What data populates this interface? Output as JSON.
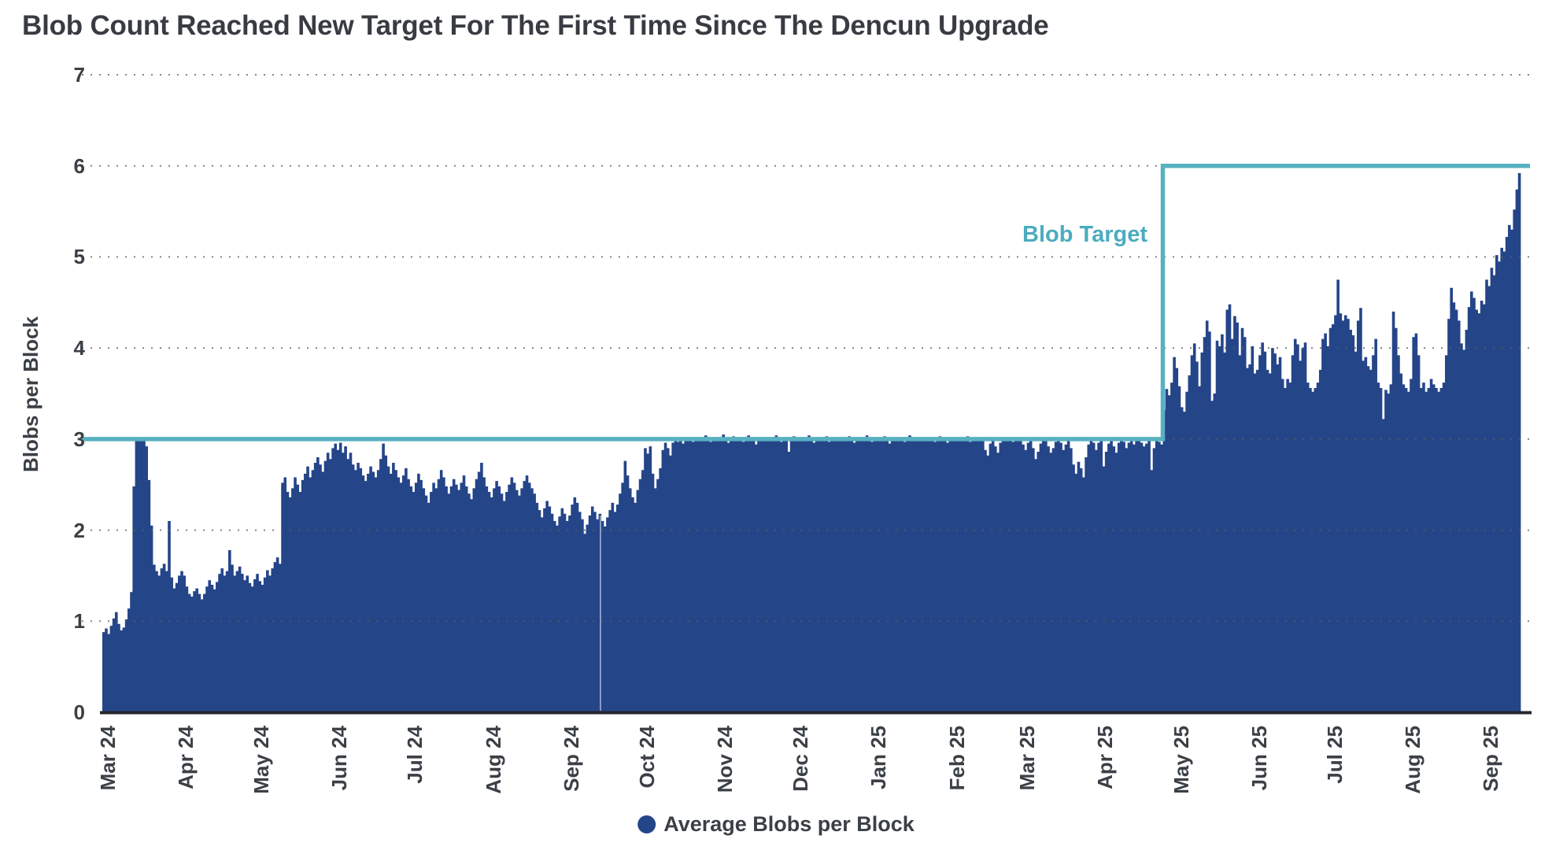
{
  "title": "Blob Count Reached New Target For The First Time Since The Dencun Upgrade",
  "colors": {
    "bar": "#254589",
    "target_line": "#58b1c1",
    "annotation_text": "#4bacbe",
    "text": "#3b4046",
    "axis_line": "#26262e",
    "grid_dot": "#5c5c5c",
    "gap_line": "#ffffff"
  },
  "y_axis": {
    "label": "Blobs per Block",
    "ticks": [
      0,
      1,
      2,
      3,
      4,
      5,
      6,
      7
    ]
  },
  "legend": {
    "label": "Average Blobs per Block",
    "marker": "circle-icon"
  },
  "annotation": {
    "label": "Blob Target"
  },
  "chart_data": {
    "type": "bar",
    "title": "Blob Count Reached New Target For The First Time Since The Dencun Upgrade",
    "xlabel": "",
    "ylabel": "Blobs per Block",
    "ylim": [
      0,
      7
    ],
    "grid": "dotted-horizontal",
    "legend_position": "bottom-center",
    "series_name": "Average Blobs per Block",
    "start_date": "2024-03-13",
    "frequency": "daily",
    "x_ticks": [
      [
        "Mar 24",
        2
      ],
      [
        "Apr 24",
        33
      ],
      [
        "May 24",
        63
      ],
      [
        "Jun 24",
        94
      ],
      [
        "Jul 24",
        124
      ],
      [
        "Aug 24",
        155
      ],
      [
        "Sep 24",
        186
      ],
      [
        "Oct 24",
        216
      ],
      [
        "Nov 24",
        247
      ],
      [
        "Dec 24",
        277
      ],
      [
        "Jan 25",
        308
      ],
      [
        "Feb 25",
        339
      ],
      [
        "Mar 25",
        367
      ],
      [
        "Apr 25",
        398
      ],
      [
        "May 25",
        428
      ],
      [
        "Jun 25",
        459
      ],
      [
        "Jul 25",
        489
      ],
      [
        "Aug 25",
        520
      ],
      [
        "Sep 25",
        551
      ]
    ],
    "target_series": {
      "name": "Blob Target",
      "before_value": 3,
      "after_value": 6,
      "change_index": 421,
      "change_date": "2025-05-08"
    },
    "gap_line_index": 197,
    "values": [
      0.88,
      0.92,
      0.86,
      0.95,
      1.03,
      1.1,
      0.97,
      0.9,
      0.93,
      1.02,
      1.14,
      1.32,
      2.48,
      3.0,
      3.0,
      3.0,
      3.0,
      2.92,
      2.55,
      2.05,
      1.62,
      1.55,
      1.5,
      1.58,
      1.63,
      1.55,
      2.1,
      1.48,
      1.36,
      1.42,
      1.5,
      1.55,
      1.5,
      1.38,
      1.3,
      1.27,
      1.33,
      1.36,
      1.3,
      1.24,
      1.3,
      1.38,
      1.45,
      1.4,
      1.35,
      1.43,
      1.52,
      1.58,
      1.5,
      1.55,
      1.78,
      1.62,
      1.5,
      1.55,
      1.6,
      1.52,
      1.45,
      1.5,
      1.42,
      1.38,
      1.46,
      1.52,
      1.44,
      1.4,
      1.48,
      1.56,
      1.5,
      1.58,
      1.65,
      1.7,
      1.63,
      2.52,
      2.58,
      2.42,
      2.36,
      2.46,
      2.58,
      2.5,
      2.42,
      2.55,
      2.62,
      2.7,
      2.58,
      2.66,
      2.74,
      2.8,
      2.72,
      2.64,
      2.76,
      2.85,
      2.78,
      2.9,
      2.95,
      2.88,
      2.96,
      2.85,
      2.92,
      2.78,
      2.85,
      2.72,
      2.66,
      2.74,
      2.68,
      2.6,
      2.54,
      2.62,
      2.7,
      2.64,
      2.58,
      2.66,
      2.78,
      2.95,
      2.82,
      2.7,
      2.62,
      2.74,
      2.66,
      2.58,
      2.52,
      2.6,
      2.68,
      2.56,
      2.48,
      2.42,
      2.52,
      2.62,
      2.55,
      2.46,
      2.38,
      2.3,
      2.42,
      2.52,
      2.46,
      2.56,
      2.66,
      2.58,
      2.48,
      2.4,
      2.48,
      2.56,
      2.5,
      2.44,
      2.52,
      2.6,
      2.48,
      2.4,
      2.34,
      2.46,
      2.56,
      2.64,
      2.74,
      2.58,
      2.48,
      2.42,
      2.36,
      2.46,
      2.54,
      2.48,
      2.4,
      2.32,
      2.42,
      2.5,
      2.58,
      2.52,
      2.44,
      2.38,
      2.46,
      2.54,
      2.6,
      2.52,
      2.46,
      2.4,
      2.3,
      2.22,
      2.14,
      2.24,
      2.32,
      2.26,
      2.18,
      2.1,
      2.05,
      2.15,
      2.24,
      2.18,
      2.1,
      2.16,
      2.28,
      2.36,
      2.3,
      2.2,
      2.12,
      1.96,
      2.06,
      2.16,
      2.26,
      2.2,
      2.12,
      2.18,
      2.1,
      2.04,
      2.14,
      2.22,
      2.3,
      2.2,
      2.28,
      2.4,
      2.52,
      2.76,
      2.6,
      2.46,
      2.36,
      2.3,
      2.44,
      2.56,
      2.66,
      2.9,
      2.84,
      2.92,
      2.62,
      2.46,
      2.56,
      2.68,
      2.88,
      2.96,
      2.9,
      2.82,
      2.96,
      3.0,
      2.97,
      3.0,
      2.95,
      3.0,
      2.98,
      3.0,
      2.97,
      3.02,
      3.0,
      2.98,
      3.0,
      3.04,
      3.0,
      2.97,
      3.0,
      3.02,
      2.98,
      3.0,
      3.05,
      3.0,
      2.96,
      3.0,
      3.03,
      2.98,
      3.0,
      3.01,
      2.97,
      3.0,
      3.04,
      3.0,
      2.98,
      2.94,
      3.0,
      3.02,
      3.0,
      3.0,
      3.02,
      2.98,
      3.0,
      3.04,
      3.0,
      2.97,
      3.0,
      3.01,
      2.86,
      3.0,
      3.03,
      2.99,
      3.0,
      3.02,
      2.98,
      3.0,
      3.04,
      3.0,
      2.96,
      3.0,
      3.02,
      2.99,
      3.0,
      3.03,
      2.97,
      3.0,
      3.01,
      2.98,
      3.0,
      3.02,
      3.0,
      2.98,
      3.03,
      3.0,
      2.96,
      3.0,
      3.02,
      2.99,
      3.0,
      3.04,
      3.0,
      2.97,
      3.0,
      3.01,
      2.98,
      3.0,
      3.03,
      3.0,
      2.95,
      3.0,
      3.02,
      2.98,
      3.0,
      3.01,
      2.97,
      3.0,
      3.04,
      3.0,
      2.98,
      3.0,
      3.02,
      3.0,
      3.02,
      2.98,
      3.0,
      3.01,
      2.97,
      3.0,
      3.03,
      2.99,
      3.0,
      2.96,
      3.0,
      3.02,
      2.98,
      3.0,
      3.01,
      2.99,
      3.0,
      3.03,
      2.97,
      3.0,
      3.0,
      2.98,
      3.02,
      3.0,
      2.88,
      2.82,
      2.95,
      3.0,
      2.92,
      2.85,
      2.96,
      3.0,
      2.98,
      3.0,
      3.02,
      2.97,
      3.0,
      2.99,
      3.0,
      2.94,
      2.88,
      2.96,
      3.0,
      2.9,
      2.78,
      2.86,
      2.95,
      3.0,
      2.98,
      2.92,
      2.85,
      2.9,
      2.97,
      3.0,
      2.96,
      2.88,
      2.94,
      3.0,
      2.9,
      2.72,
      2.62,
      2.75,
      2.68,
      2.58,
      2.8,
      2.94,
      3.0,
      2.96,
      2.88,
      2.96,
      3.0,
      2.7,
      2.86,
      2.95,
      3.0,
      2.92,
      2.85,
      2.96,
      3.0,
      2.97,
      2.9,
      2.96,
      3.0,
      2.94,
      2.98,
      3.0,
      2.96,
      2.92,
      2.95,
      3.0,
      2.66,
      2.9,
      3.0,
      2.97,
      2.94,
      3.32,
      3.55,
      3.48,
      3.62,
      3.9,
      3.78,
      3.58,
      3.35,
      3.3,
      3.52,
      3.7,
      3.92,
      4.05,
      3.85,
      3.58,
      3.95,
      4.12,
      4.3,
      4.18,
      3.42,
      3.5,
      4.08,
      4.02,
      4.15,
      3.95,
      4.42,
      4.48,
      4.1,
      4.35,
      4.28,
      3.92,
      4.22,
      4.12,
      3.78,
      3.82,
      4.02,
      3.72,
      3.76,
      3.92,
      4.06,
      3.96,
      3.76,
      3.72,
      4.0,
      3.94,
      3.82,
      3.9,
      3.66,
      3.56,
      3.66,
      3.62,
      3.92,
      4.1,
      4.04,
      3.86,
      4.0,
      4.06,
      3.62,
      3.56,
      3.52,
      3.56,
      3.62,
      3.76,
      4.1,
      4.16,
      4.02,
      4.22,
      4.26,
      4.36,
      4.75,
      4.38,
      4.3,
      4.36,
      4.32,
      4.2,
      4.14,
      3.96,
      4.3,
      4.44,
      3.86,
      3.9,
      3.8,
      3.76,
      3.92,
      4.1,
      3.62,
      3.56,
      3.22,
      3.54,
      3.5,
      3.6,
      4.4,
      4.22,
      3.92,
      3.72,
      3.6,
      3.56,
      3.52,
      3.66,
      4.12,
      4.16,
      3.92,
      3.56,
      3.62,
      3.52,
      3.56,
      3.66,
      3.6,
      3.56,
      3.52,
      3.56,
      3.62,
      3.92,
      4.32,
      4.66,
      4.5,
      4.42,
      4.3,
      4.05,
      3.98,
      4.2,
      4.45,
      4.62,
      4.55,
      4.42,
      4.38,
      4.52,
      4.48,
      4.75,
      4.68,
      4.88,
      4.8,
      5.02,
      4.95,
      5.1,
      5.06,
      5.22,
      5.35,
      5.3,
      5.52,
      5.74,
      5.92
    ]
  }
}
